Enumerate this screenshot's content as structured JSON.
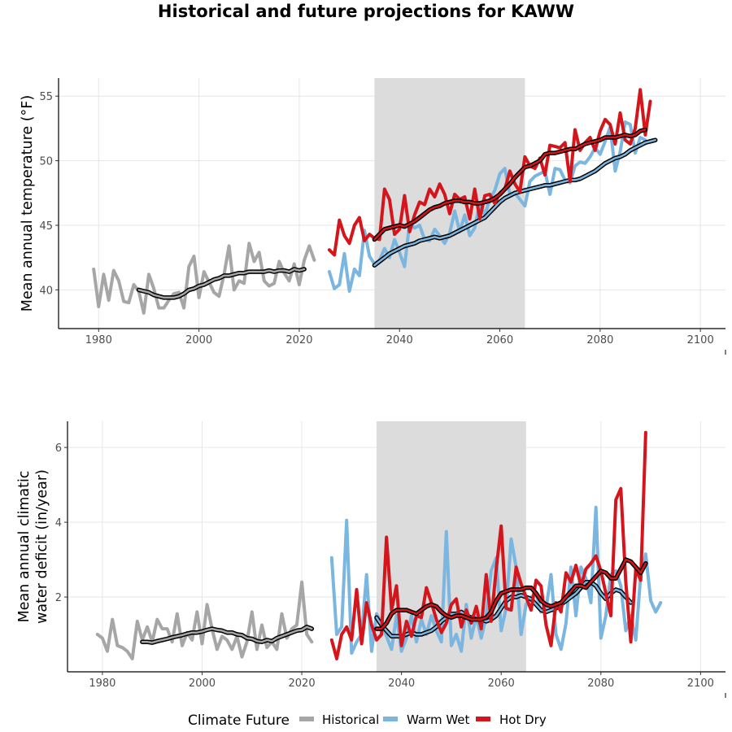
{
  "colors": {
    "historical": "#a6a6a6",
    "warm_wet": "#7ab6df",
    "hot_dry": "#d4161c",
    "shade": "#dcdcdc",
    "grid": "#e6e6e6"
  },
  "chart_data": {
    "type": "line",
    "title": "Historical and future projections for KAWW",
    "legend": {
      "title": "Climate Future",
      "position": "bottom",
      "entries": [
        "Historical",
        "Warm Wet",
        "Hot Dry"
      ]
    },
    "panels": [
      {
        "ylabel": [
          "Mean annual temperature (°F)"
        ],
        "xlim": [
          1972,
          2105
        ],
        "ylim": [
          37,
          56.4
        ],
        "xticks": [
          1980,
          2000,
          2020,
          2040,
          2060,
          2080,
          2100
        ],
        "yticks": [
          40,
          45,
          50,
          55
        ],
        "shade": [
          2035,
          2065
        ],
        "grid": true,
        "series": [
          {
            "name": "Historical",
            "key": "historical",
            "x_start": 1979,
            "values": [
              41.6,
              38.7,
              41.2,
              39.2,
              41.5,
              40.7,
              39.1,
              39.0,
              40.4,
              39.9,
              38.2,
              41.2,
              40.1,
              38.6,
              38.6,
              39.2,
              39.7,
              39.8,
              38.6,
              41.8,
              42.6,
              39.4,
              41.4,
              40.6,
              39.8,
              39.5,
              41.2,
              43.4,
              40.0,
              40.7,
              40.5,
              43.6,
              42.2,
              42.9,
              40.7,
              40.3,
              40.5,
              42.2,
              41.3,
              40.7,
              42.0,
              40.4,
              42.3,
              43.4,
              42.3
            ]
          },
          {
            "name": "Historical smoothed",
            "key": "historical",
            "smooth": true,
            "x_start": 1988,
            "values": [
              40.0,
              39.9,
              39.8,
              39.6,
              39.5,
              39.4,
              39.4,
              39.4,
              39.5,
              39.7,
              40.0,
              40.1,
              40.3,
              40.4,
              40.6,
              40.8,
              40.9,
              41.1,
              41.1,
              41.2,
              41.3,
              41.3,
              41.4,
              41.4,
              41.4,
              41.4,
              41.5,
              41.4,
              41.5,
              41.5,
              41.4,
              41.6,
              41.5,
              41.6
            ]
          },
          {
            "name": "Warm Wet",
            "key": "warm_wet",
            "x_start": 2026,
            "values": [
              41.4,
              40.1,
              40.4,
              42.8,
              39.9,
              41.6,
              41.1,
              44.6,
              42.6,
              42.0,
              42.3,
              43.2,
              42.5,
              43.9,
              42.9,
              41.8,
              45.2,
              44.8,
              45.0,
              43.9,
              43.8,
              44.7,
              44.2,
              43.6,
              44.4,
              46.1,
              44.5,
              45.8,
              44.2,
              44.8,
              46.7,
              45.8,
              47.0,
              47.7,
              49.0,
              49.4,
              47.4,
              47.5,
              47.0,
              46.5,
              48.4,
              48.8,
              49.0,
              49.2,
              47.4,
              49.4,
              49.3,
              48.5,
              48.3,
              49.6,
              49.9,
              49.8,
              50.3,
              51.0,
              50.5,
              51.5,
              52.6,
              49.2,
              50.7,
              53.0,
              52.8,
              50.6,
              51.8,
              51.6
            ]
          },
          {
            "name": "Warm Wet smoothed",
            "key": "warm_wet",
            "smooth": true,
            "x_start": 2035,
            "values": [
              41.9,
              42.2,
              42.5,
              42.8,
              43.0,
              43.2,
              43.4,
              43.5,
              43.6,
              43.8,
              43.9,
              44.0,
              44.1,
              44.0,
              44.1,
              44.2,
              44.4,
              44.6,
              44.8,
              45.0,
              45.2,
              45.4,
              45.6,
              46.0,
              46.4,
              46.8,
              47.1,
              47.3,
              47.5,
              47.6,
              47.7,
              47.8,
              47.9,
              48.0,
              48.1,
              48.1,
              48.2,
              48.3,
              48.4,
              48.5,
              48.5,
              48.6,
              48.8,
              49.0,
              49.2,
              49.5,
              49.8,
              50.0,
              50.2,
              50.3,
              50.5,
              50.8,
              51.0,
              51.2,
              51.4,
              51.5,
              51.6
            ]
          },
          {
            "name": "Hot Dry",
            "key": "hot_dry",
            "x_start": 2026,
            "values": [
              43.1,
              42.7,
              45.4,
              44.2,
              43.6,
              45.0,
              45.6,
              43.8,
              44.3,
              44.0,
              43.9,
              47.8,
              47.0,
              44.3,
              44.7,
              47.3,
              44.5,
              45.8,
              46.8,
              46.6,
              47.8,
              47.2,
              48.2,
              47.4,
              45.9,
              47.4,
              47.0,
              47.2,
              45.5,
              47.8,
              45.5,
              47.3,
              47.4,
              46.7,
              47.5,
              47.8,
              49.2,
              48.2,
              47.6,
              50.3,
              49.6,
              49.4,
              50.2,
              48.9,
              51.2,
              51.1,
              51.0,
              51.4,
              48.4,
              52.4,
              50.8,
              51.4,
              51.8,
              50.8,
              52.3,
              53.2,
              52.8,
              51.3,
              53.7,
              51.6,
              51.3,
              52.5,
              55.5,
              52.0,
              54.6
            ]
          },
          {
            "name": "Hot Dry smoothed",
            "key": "hot_dry",
            "smooth": true,
            "x_start": 2035,
            "values": [
              43.9,
              44.3,
              44.7,
              44.8,
              44.9,
              45.0,
              44.9,
              45.1,
              45.3,
              45.6,
              45.9,
              46.2,
              46.4,
              46.5,
              46.7,
              46.8,
              46.9,
              46.9,
              46.8,
              46.8,
              46.7,
              46.7,
              46.8,
              46.9,
              47.1,
              47.4,
              47.8,
              48.2,
              48.7,
              49.1,
              49.5,
              49.6,
              49.8,
              50.0,
              50.5,
              50.6,
              50.6,
              50.7,
              50.8,
              50.9,
              50.9,
              51.1,
              51.3,
              51.4,
              51.5,
              51.6,
              51.8,
              51.8,
              51.8,
              51.9,
              52.0,
              51.9,
              52.0,
              52.3,
              52.4
            ]
          }
        ]
      },
      {
        "ylabel": [
          "Mean annual climatic",
          "water deficit (in/year)"
        ],
        "xlim": [
          1973,
          2105
        ],
        "ylim": [
          0,
          6.7
        ],
        "xticks": [
          1980,
          2000,
          2020,
          2040,
          2060,
          2080,
          2100
        ],
        "yticks": [
          2,
          4,
          6
        ],
        "shade": [
          2035,
          2065
        ],
        "grid": true,
        "series": [
          {
            "name": "Historical",
            "key": "historical",
            "x_start": 1979,
            "values": [
              1.0,
              0.9,
              0.55,
              1.4,
              0.7,
              0.65,
              0.55,
              0.35,
              1.35,
              0.85,
              1.2,
              0.8,
              1.4,
              1.15,
              1.15,
              0.8,
              1.55,
              0.7,
              1.05,
              0.85,
              1.6,
              0.75,
              1.8,
              1.15,
              0.6,
              0.95,
              0.85,
              0.6,
              0.95,
              0.4,
              0.8,
              1.6,
              0.6,
              1.25,
              0.65,
              0.8,
              0.6,
              1.55,
              0.9,
              1.15,
              1.25,
              2.4,
              1.0,
              0.8
            ]
          },
          {
            "name": "Historical smoothed",
            "key": "historical",
            "smooth": true,
            "x_start": 1988,
            "values": [
              0.8,
              0.8,
              0.78,
              0.82,
              0.85,
              0.88,
              0.92,
              0.95,
              0.98,
              1.02,
              1.05,
              1.05,
              1.08,
              1.12,
              1.15,
              1.12,
              1.1,
              1.05,
              1.05,
              1.0,
              0.98,
              0.9,
              0.88,
              0.82,
              0.8,
              0.85,
              0.82,
              0.9,
              0.95,
              1.0,
              1.05,
              1.1,
              1.12,
              1.2,
              1.15
            ]
          },
          {
            "name": "Warm Wet",
            "key": "warm_wet",
            "x_start": 2026,
            "values": [
              3.05,
              1.0,
              1.2,
              4.05,
              0.5,
              0.8,
              1.0,
              2.6,
              0.55,
              1.55,
              1.3,
              0.95,
              0.6,
              1.5,
              0.55,
              0.9,
              1.5,
              0.8,
              1.4,
              1.0,
              1.5,
              1.1,
              0.8,
              3.75,
              0.7,
              1.0,
              0.55,
              1.8,
              0.9,
              1.5,
              0.9,
              1.5,
              2.7,
              3.05,
              1.1,
              1.7,
              3.55,
              2.8,
              1.0,
              1.8,
              2.0,
              2.1,
              1.6,
              1.7,
              2.6,
              1.0,
              0.6,
              1.3,
              2.8,
              1.5,
              2.8,
              2.5,
              1.85,
              4.4,
              0.9,
              1.5,
              2.6,
              2.7,
              2.3,
              1.1,
              1.5,
              0.85,
              2.6,
              3.15,
              1.9,
              1.6,
              1.85
            ]
          },
          {
            "name": "Warm Wet smoothed",
            "key": "warm_wet",
            "smooth": true,
            "x_start": 2035,
            "values": [
              1.45,
              1.25,
              1.1,
              0.95,
              0.95,
              0.95,
              1.0,
              1.05,
              1.0,
              1.0,
              1.05,
              1.1,
              1.2,
              1.35,
              1.45,
              1.55,
              1.55,
              1.6,
              1.5,
              1.45,
              1.4,
              1.4,
              1.35,
              1.4,
              1.5,
              1.7,
              1.9,
              2.0,
              2.0,
              2.05,
              2.0,
              1.95,
              1.8,
              1.65,
              1.6,
              1.65,
              1.7,
              1.8,
              1.9,
              2.0,
              2.1,
              2.25,
              2.4,
              2.4,
              2.3,
              2.1,
              1.95,
              2.1,
              2.2,
              2.15,
              2.0,
              1.85
            ]
          },
          {
            "name": "Hot Dry",
            "key": "hot_dry",
            "x_start": 2026,
            "values": [
              0.85,
              0.35,
              1.0,
              1.2,
              0.85,
              2.2,
              0.75,
              1.85,
              1.25,
              0.85,
              1.0,
              3.6,
              1.65,
              2.3,
              0.7,
              1.35,
              0.95,
              1.5,
              1.45,
              2.25,
              1.85,
              1.4,
              1.05,
              1.3,
              1.8,
              1.95,
              1.2,
              1.65,
              1.3,
              1.75,
              1.15,
              2.6,
              1.35,
              2.75,
              3.9,
              1.7,
              1.65,
              2.8,
              2.35,
              2.0,
              1.65,
              2.45,
              2.3,
              1.25,
              0.7,
              1.85,
              1.6,
              2.65,
              2.4,
              2.85,
              2.3,
              2.75,
              2.9,
              3.1,
              2.7,
              2.1,
              1.5,
              4.6,
              4.9,
              2.4,
              0.8,
              2.75,
              2.45,
              6.4
            ]
          },
          {
            "name": "Hot Dry smoothed",
            "key": "hot_dry",
            "smooth": true,
            "x_start": 2035,
            "values": [
              1.15,
              1.15,
              1.3,
              1.55,
              1.65,
              1.65,
              1.65,
              1.6,
              1.55,
              1.65,
              1.75,
              1.8,
              1.75,
              1.6,
              1.5,
              1.45,
              1.5,
              1.5,
              1.45,
              1.4,
              1.4,
              1.4,
              1.45,
              1.6,
              1.9,
              2.1,
              2.15,
              2.2,
              2.2,
              2.2,
              2.25,
              2.25,
              2.1,
              1.9,
              1.8,
              1.75,
              1.8,
              1.85,
              2.0,
              2.15,
              2.3,
              2.3,
              2.25,
              2.4,
              2.55,
              2.7,
              2.65,
              2.5,
              2.5,
              2.75,
              3.0,
              2.95,
              2.8,
              2.65,
              2.9
            ]
          }
        ]
      }
    ]
  }
}
